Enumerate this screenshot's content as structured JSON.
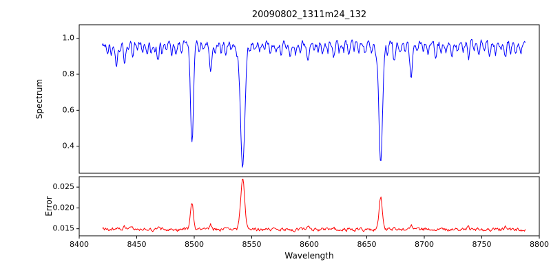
{
  "chart_data": [
    {
      "type": "line",
      "panel": "spectrum",
      "title": "20090802_1311m24_132",
      "ylabel": "Spectrum",
      "color": "#0000ff",
      "xlim": [
        8400,
        8800
      ],
      "ylim": [
        0.25,
        1.075
      ],
      "x_data_range": [
        8420,
        8788
      ],
      "x_step": 0.6,
      "yticks": [
        0.4,
        0.6,
        0.8,
        1.0
      ],
      "ytick_labels": [
        "0.4",
        "0.6",
        "0.8",
        "1.0"
      ],
      "continuum": 0.972,
      "noise_amplitude": 0.016,
      "line_columns": [
        "center",
        "depth",
        "width"
      ],
      "absorption_lines": [
        [
          8498.02,
          0.545,
          1.3
        ],
        [
          8542.09,
          0.7,
          1.9
        ],
        [
          8662.14,
          0.665,
          1.6
        ],
        [
          8424.5,
          0.05,
          0.8
        ],
        [
          8428.0,
          0.07,
          0.8
        ],
        [
          8432.3,
          0.12,
          0.9
        ],
        [
          8435.0,
          0.06,
          0.8
        ],
        [
          8439.4,
          0.1,
          0.9
        ],
        [
          8443.0,
          0.05,
          0.7
        ],
        [
          8446.6,
          0.09,
          0.8
        ],
        [
          8450.5,
          0.05,
          0.7
        ],
        [
          8455.0,
          0.04,
          0.8
        ],
        [
          8459.0,
          0.05,
          0.7
        ],
        [
          8462.5,
          0.06,
          0.8
        ],
        [
          8465.5,
          0.05,
          0.7
        ],
        [
          8468.5,
          0.11,
          0.9
        ],
        [
          8472.0,
          0.06,
          0.7
        ],
        [
          8476.0,
          0.04,
          0.7
        ],
        [
          8480.5,
          0.06,
          0.8
        ],
        [
          8484.0,
          0.05,
          0.7
        ],
        [
          8489.0,
          0.04,
          0.7
        ],
        [
          8504.0,
          0.05,
          0.7
        ],
        [
          8508.0,
          0.04,
          0.7
        ],
        [
          8514.2,
          0.17,
          1.0
        ],
        [
          8518.0,
          0.06,
          0.8
        ],
        [
          8523.5,
          0.05,
          0.7
        ],
        [
          8527.5,
          0.07,
          0.8
        ],
        [
          8532.0,
          0.04,
          0.7
        ],
        [
          8537.0,
          0.05,
          0.7
        ],
        [
          8548.5,
          0.05,
          0.7
        ],
        [
          8553.0,
          0.04,
          0.7
        ],
        [
          8556.8,
          0.06,
          0.8
        ],
        [
          8561.0,
          0.04,
          0.7
        ],
        [
          8566.0,
          0.05,
          0.7
        ],
        [
          8571.0,
          0.04,
          0.7
        ],
        [
          8575.5,
          0.06,
          0.8
        ],
        [
          8580.0,
          0.05,
          0.7
        ],
        [
          8583.5,
          0.08,
          0.9
        ],
        [
          8588.0,
          0.05,
          0.7
        ],
        [
          8592.0,
          0.04,
          0.7
        ],
        [
          8598.8,
          0.1,
          0.9
        ],
        [
          8604.0,
          0.05,
          0.7
        ],
        [
          8607.5,
          0.04,
          0.7
        ],
        [
          8611.5,
          0.07,
          0.8
        ],
        [
          8616.0,
          0.05,
          0.7
        ],
        [
          8621.3,
          0.09,
          0.8
        ],
        [
          8626.0,
          0.05,
          0.7
        ],
        [
          8630.0,
          0.04,
          0.7
        ],
        [
          8634.5,
          0.06,
          0.8
        ],
        [
          8639.0,
          0.04,
          0.7
        ],
        [
          8643.0,
          0.05,
          0.7
        ],
        [
          8648.5,
          0.07,
          0.8
        ],
        [
          8654.0,
          0.05,
          0.7
        ],
        [
          8658.0,
          0.04,
          0.7
        ],
        [
          8668.0,
          0.05,
          0.7
        ],
        [
          8674.0,
          0.1,
          0.9
        ],
        [
          8679.0,
          0.06,
          0.8
        ],
        [
          8683.5,
          0.05,
          0.7
        ],
        [
          8688.6,
          0.2,
          1.1
        ],
        [
          8694.0,
          0.05,
          0.7
        ],
        [
          8699.0,
          0.04,
          0.7
        ],
        [
          8703.0,
          0.06,
          0.8
        ],
        [
          8710.0,
          0.08,
          0.9
        ],
        [
          8714.5,
          0.05,
          0.7
        ],
        [
          8719.0,
          0.04,
          0.7
        ],
        [
          8724.0,
          0.06,
          0.8
        ],
        [
          8729.0,
          0.04,
          0.7
        ],
        [
          8734.0,
          0.05,
          0.7
        ],
        [
          8738.5,
          0.09,
          0.9
        ],
        [
          8743.0,
          0.05,
          0.7
        ],
        [
          8747.5,
          0.08,
          0.8
        ],
        [
          8752.0,
          0.05,
          0.7
        ],
        [
          8757.0,
          0.07,
          0.8
        ],
        [
          8762.0,
          0.05,
          0.7
        ],
        [
          8766.5,
          0.04,
          0.7
        ],
        [
          8770.5,
          0.08,
          0.8
        ],
        [
          8775.0,
          0.05,
          0.7
        ],
        [
          8779.5,
          0.06,
          0.7
        ],
        [
          8784.0,
          0.05,
          0.7
        ]
      ]
    },
    {
      "type": "line",
      "panel": "error",
      "ylabel": "Error",
      "xlabel": "Wavelength",
      "color": "#ff0000",
      "xlim": [
        8400,
        8800
      ],
      "ylim": [
        0.0133,
        0.0275
      ],
      "x_data_range": [
        8420,
        8788
      ],
      "x_step": 0.6,
      "xticks": [
        8400,
        8450,
        8500,
        8550,
        8600,
        8650,
        8700,
        8750,
        8800
      ],
      "xtick_labels": [
        "8400",
        "8450",
        "8500",
        "8550",
        "8600",
        "8650",
        "8700",
        "8750",
        "8800"
      ],
      "yticks": [
        0.015,
        0.02,
        0.025
      ],
      "ytick_labels": [
        "0.015",
        "0.020",
        "0.025"
      ],
      "baseline": 0.0148,
      "noise_amplitude": 0.00035,
      "peak_columns": [
        "center",
        "height",
        "width"
      ],
      "peaks": [
        [
          8498.02,
          0.0065,
          1.3
        ],
        [
          8542.09,
          0.0122,
          1.7
        ],
        [
          8662.14,
          0.0077,
          1.5
        ],
        [
          8514.2,
          0.0013,
          1.0
        ],
        [
          8688.6,
          0.0014,
          1.1
        ],
        [
          8432.3,
          0.0007,
          0.9
        ],
        [
          8468.5,
          0.0006,
          0.9
        ],
        [
          8439.4,
          0.0005,
          0.8
        ],
        [
          8598.8,
          0.0005,
          0.9
        ],
        [
          8621.3,
          0.0004,
          0.8
        ],
        [
          8674.0,
          0.0005,
          0.9
        ],
        [
          8738.5,
          0.0005,
          0.9
        ],
        [
          8770.5,
          0.0005,
          0.8
        ],
        [
          8747.5,
          0.0004,
          0.8
        ]
      ]
    }
  ]
}
